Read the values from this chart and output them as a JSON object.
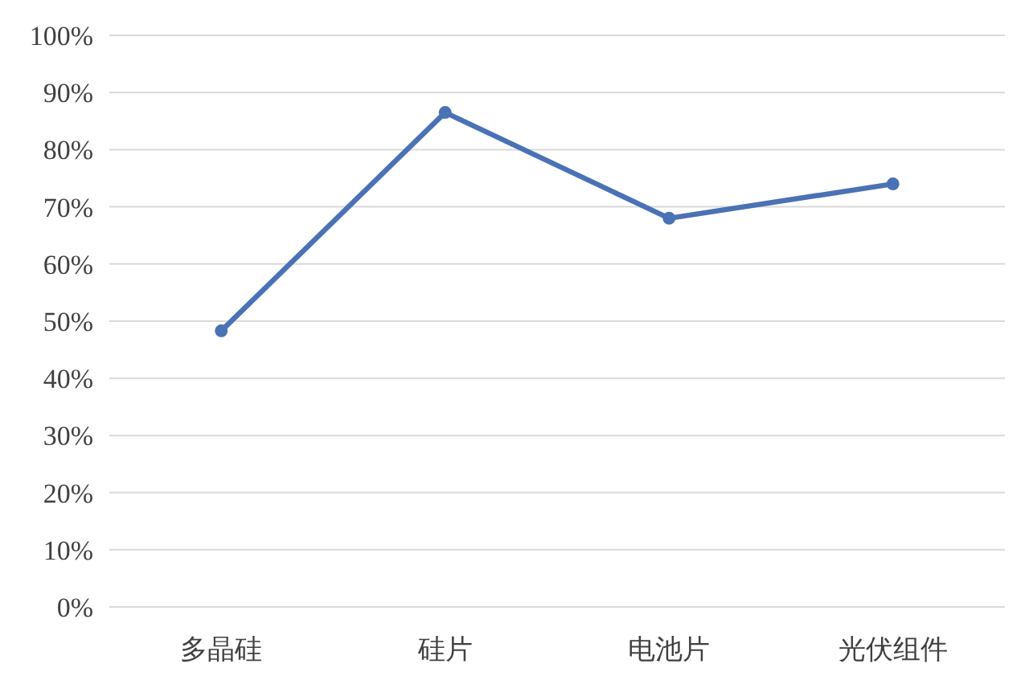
{
  "chart_data": {
    "type": "line",
    "categories": [
      "多晶硅",
      "硅片",
      "电池片",
      "光伏组件"
    ],
    "series": [
      {
        "color": "#4a72b5",
        "values": [
          48.3,
          86.5,
          68.0,
          74.0
        ]
      }
    ],
    "ylim": [
      0,
      100
    ],
    "yticks": [
      {
        "value": 0,
        "label": "0%"
      },
      {
        "value": 10,
        "label": "10%"
      },
      {
        "value": 20,
        "label": "20%"
      },
      {
        "value": 30,
        "label": "30%"
      },
      {
        "value": 40,
        "label": "40%"
      },
      {
        "value": 50,
        "label": "50%"
      },
      {
        "value": 60,
        "label": "60%"
      },
      {
        "value": 70,
        "label": "70%"
      },
      {
        "value": 80,
        "label": "80%"
      },
      {
        "value": 90,
        "label": "90%"
      },
      {
        "value": 100,
        "label": "100%"
      }
    ],
    "grid": "y",
    "marker": "circle",
    "line_style": "solid"
  }
}
